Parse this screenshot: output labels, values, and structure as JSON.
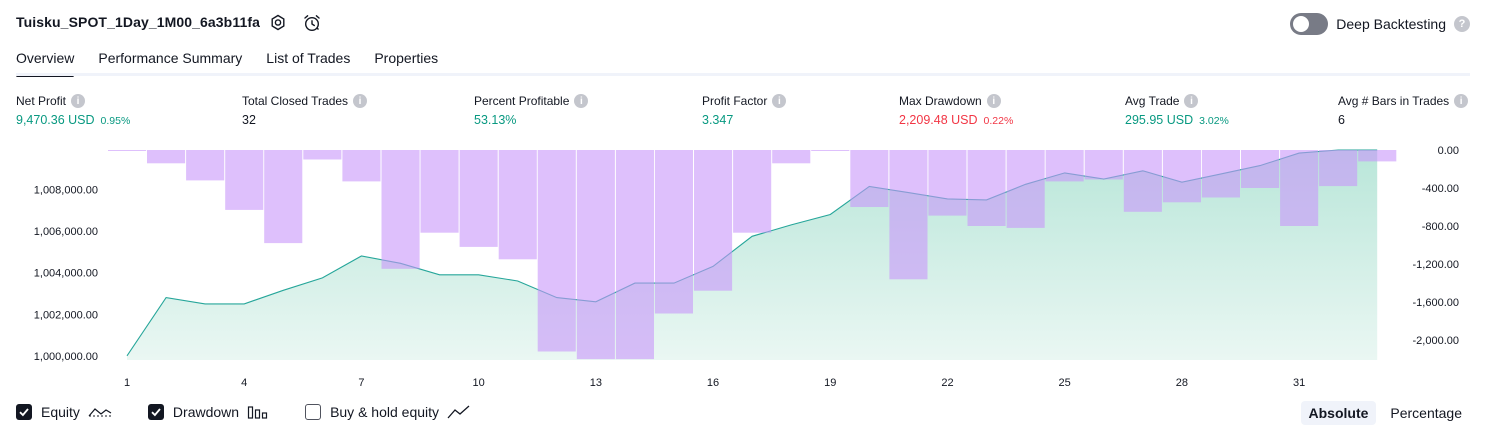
{
  "header": {
    "title": "Tuisku_SPOT_1Day_1M00_6a3b11fa",
    "settings_icon": "gear-icon",
    "alert_icon": "alarm-clock-icon",
    "deep_backtesting_label": "Deep Backtesting",
    "deep_backtesting_enabled": false
  },
  "tabs": [
    {
      "label": "Overview",
      "active": true
    },
    {
      "label": "Performance Summary",
      "active": false
    },
    {
      "label": "List of Trades",
      "active": false
    },
    {
      "label": "Properties",
      "active": false
    }
  ],
  "metrics": [
    {
      "label": "Net Profit",
      "value": "9,470.36 USD",
      "pct": "0.95%",
      "color": "green"
    },
    {
      "label": "Total Closed Trades",
      "value": "32",
      "pct": "",
      "color": "default"
    },
    {
      "label": "Percent Profitable",
      "value": "53.13%",
      "pct": "",
      "color": "green"
    },
    {
      "label": "Profit Factor",
      "value": "3.347",
      "pct": "",
      "color": "green"
    },
    {
      "label": "Max Drawdown",
      "value": "2,209.48 USD",
      "pct": "0.22%",
      "color": "red"
    },
    {
      "label": "Avg Trade",
      "value": "295.95 USD",
      "pct": "3.02%",
      "color": "green"
    },
    {
      "label": "Avg # Bars in Trades",
      "value": "6",
      "pct": "",
      "color": "default"
    }
  ],
  "chart_data": {
    "type": "area",
    "x_ticks": [
      "1",
      "4",
      "7",
      "10",
      "13",
      "16",
      "19",
      "22",
      "25",
      "28",
      "31"
    ],
    "left_axis": {
      "ticks": [
        "1,008,000.00",
        "1,006,000.00",
        "1,004,000.00",
        "1,002,000.00",
        "1,000,000.00"
      ],
      "tick_values": [
        1008000,
        1006000,
        1004000,
        1002000,
        1000000
      ],
      "range": [
        999800,
        1009900
      ]
    },
    "right_axis": {
      "ticks": [
        "0.00",
        "-400.00",
        "-800.00",
        "-1,200.00",
        "-1,600.00",
        "-2,000.00"
      ],
      "tick_values": [
        0,
        -400,
        -800,
        -1200,
        -1600,
        -2000
      ],
      "range": [
        -2209.48,
        0
      ]
    },
    "x": [
      1,
      2,
      3,
      4,
      5,
      6,
      7,
      8,
      9,
      10,
      11,
      12,
      13,
      14,
      15,
      16,
      17,
      18,
      19,
      20,
      21,
      22,
      23,
      24,
      25,
      26,
      27,
      28,
      29,
      30,
      31,
      32,
      33
    ],
    "series": [
      {
        "name": "Equity",
        "type": "area",
        "color": "#26a69a",
        "fill": "#cdeee6",
        "values": [
          1000000,
          1002800,
          1002500,
          1002500,
          1003150,
          1003750,
          1004800,
          1004450,
          1003900,
          1003900,
          1003600,
          1002800,
          1002600,
          1003500,
          1003500,
          1004300,
          1005750,
          1006300,
          1006800,
          1008150,
          1007850,
          1007550,
          1007500,
          1008250,
          1008800,
          1008500,
          1008900,
          1008350,
          1008750,
          1009150,
          1009750,
          1010050,
          1010050
        ]
      },
      {
        "name": "Drawdown",
        "type": "bar",
        "color": "#d9b8fc",
        "overlap_color": "#b0b8e8",
        "values": [
          -10,
          -140,
          -320,
          -630,
          -980,
          -100,
          -330,
          -1250,
          -870,
          -1020,
          -1150,
          -2120,
          -2200,
          -2200,
          -1720,
          -1480,
          -870,
          -140,
          0,
          -600,
          -1360,
          -690,
          -800,
          -820,
          -330,
          -310,
          -650,
          -550,
          -500,
          -400,
          -800,
          -380,
          -120
        ]
      }
    ]
  },
  "legend": [
    {
      "label": "Equity",
      "checked": true,
      "icon": "equity-line-icon"
    },
    {
      "label": "Drawdown",
      "checked": true,
      "icon": "drawdown-bars-icon"
    },
    {
      "label": "Buy & hold equity",
      "checked": false,
      "icon": "buy-hold-line-icon"
    }
  ],
  "mode": {
    "absolute_label": "Absolute",
    "percentage_label": "Percentage",
    "selected": "Absolute"
  }
}
